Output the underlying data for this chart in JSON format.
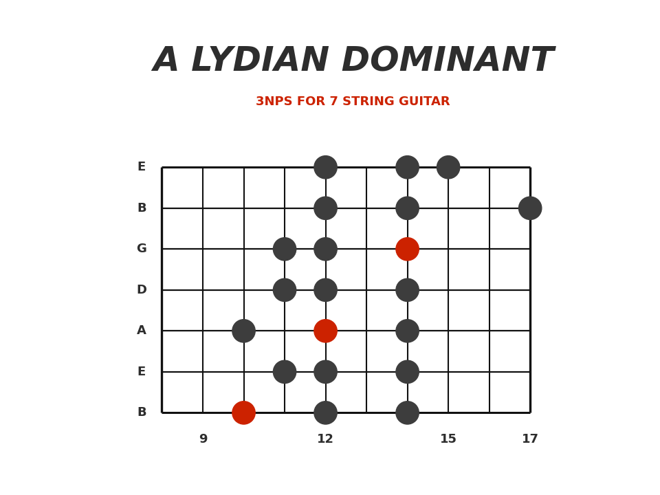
{
  "title": "A LYDIAN DOMINANT",
  "subtitle": "3NPS FOR 7 STRING GUITAR",
  "title_color": "#2d2d2d",
  "subtitle_color": "#cc2200",
  "bg_color": "#ffffff",
  "fret_min": 8,
  "fret_max": 17,
  "fret_labels": [
    9,
    12,
    15,
    17
  ],
  "strings": [
    "E",
    "B",
    "G",
    "D",
    "A",
    "E",
    "B"
  ],
  "dot_color": "#3d3d3d",
  "root_color": "#cc2200",
  "notes": [
    {
      "string": 0,
      "fret": 12,
      "root": false
    },
    {
      "string": 0,
      "fret": 14,
      "root": false
    },
    {
      "string": 0,
      "fret": 15,
      "root": false
    },
    {
      "string": 1,
      "fret": 12,
      "root": false
    },
    {
      "string": 1,
      "fret": 14,
      "root": false
    },
    {
      "string": 1,
      "fret": 17,
      "root": false
    },
    {
      "string": 2,
      "fret": 11,
      "root": false
    },
    {
      "string": 2,
      "fret": 12,
      "root": false
    },
    {
      "string": 2,
      "fret": 14,
      "root": true
    },
    {
      "string": 3,
      "fret": 11,
      "root": false
    },
    {
      "string": 3,
      "fret": 12,
      "root": false
    },
    {
      "string": 3,
      "fret": 14,
      "root": false
    },
    {
      "string": 4,
      "fret": 10,
      "root": false
    },
    {
      "string": 4,
      "fret": 12,
      "root": true
    },
    {
      "string": 4,
      "fret": 14,
      "root": false
    },
    {
      "string": 5,
      "fret": 11,
      "root": false
    },
    {
      "string": 5,
      "fret": 12,
      "root": false
    },
    {
      "string": 5,
      "fret": 14,
      "root": false
    },
    {
      "string": 6,
      "fret": 10,
      "root": true
    },
    {
      "string": 6,
      "fret": 12,
      "root": false
    },
    {
      "string": 6,
      "fret": 14,
      "root": false
    }
  ]
}
